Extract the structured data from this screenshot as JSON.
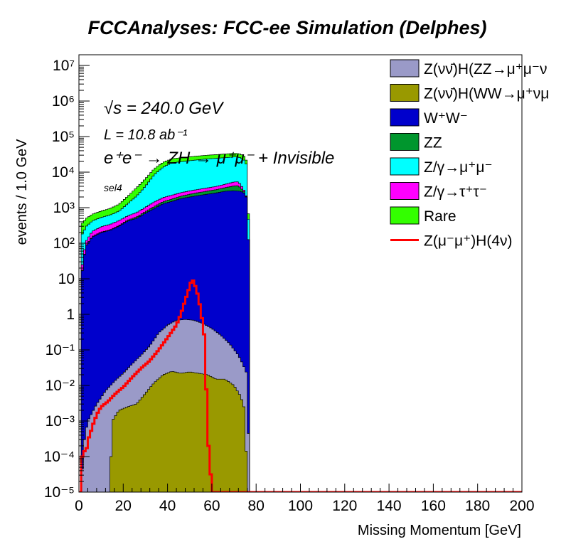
{
  "chart_data": {
    "type": "histogram (stacked, log-y)",
    "title": "FCCAnalyses: FCC-ee Simulation (Delphes)",
    "xlabel": "Missing Momentum [GeV]",
    "ylabel": "events / 1.0 GeV",
    "xlim": [
      0,
      200
    ],
    "ylim": [
      1e-05,
      20000000.0
    ],
    "y_scale": "log",
    "bin_width_gev": 1.0,
    "x_tick_labels": [
      "0",
      "20",
      "40",
      "60",
      "80",
      "100",
      "120",
      "140",
      "160",
      "180",
      "200"
    ],
    "y_tick_labels": [
      "10⁻⁵",
      "10⁻⁴",
      "10⁻³",
      "10⁻²",
      "10⁻¹",
      "1",
      "10",
      "10²",
      "10³",
      "10⁴",
      "10⁵",
      "10⁶",
      "10⁷"
    ],
    "annotations": {
      "energy": "√s = 240.0 GeV",
      "lumi": "L = 10.8 ab⁻¹",
      "process": "e⁺e⁻ → ZH → μ⁺μ⁻ + Invisible",
      "selection": "sel4"
    },
    "legend_position": "top-right",
    "stack_order_bottom_to_top": [
      "ZZmumu_nunu",
      "WW",
      "ZZ",
      "Zmumu",
      "Ztautau",
      "Rare"
    ],
    "series": [
      {
        "key": "ZZmumu_nunu",
        "name": "Z(νν̄)H(ZZ→μ⁺μ⁻ν",
        "color": "#9a9ac8",
        "points": [
          [
            1,
            1e-05
          ],
          [
            2,
            0.0002
          ],
          [
            4,
            0.001
          ],
          [
            8,
            0.003
          ],
          [
            12,
            0.007
          ],
          [
            16,
            0.013
          ],
          [
            20,
            0.022
          ],
          [
            24,
            0.04
          ],
          [
            28,
            0.07
          ],
          [
            32,
            0.13
          ],
          [
            36,
            0.3
          ],
          [
            40,
            0.5
          ],
          [
            44,
            0.68
          ],
          [
            48,
            0.72
          ],
          [
            52,
            0.68
          ],
          [
            56,
            0.55
          ],
          [
            60,
            0.4
          ],
          [
            64,
            0.26
          ],
          [
            68,
            0.15
          ],
          [
            72,
            0.07
          ],
          [
            74,
            0.04
          ],
          [
            76,
            0.02
          ],
          [
            77,
            1e-05
          ]
        ]
      },
      {
        "key": "WW_mumununu",
        "name": "Z(νν̄)H(WW→μ⁺νμ",
        "color": "#999900",
        "points": [
          [
            14,
            1e-05
          ],
          [
            15,
            0.001
          ],
          [
            18,
            0.002
          ],
          [
            22,
            0.0025
          ],
          [
            26,
            0.003
          ],
          [
            30,
            0.006
          ],
          [
            34,
            0.012
          ],
          [
            38,
            0.02
          ],
          [
            42,
            0.025
          ],
          [
            46,
            0.022
          ],
          [
            50,
            0.024
          ],
          [
            54,
            0.022
          ],
          [
            58,
            0.02
          ],
          [
            62,
            0.015
          ],
          [
            66,
            0.015
          ],
          [
            70,
            0.01
          ],
          [
            73,
            0.005
          ],
          [
            75,
            0.002
          ],
          [
            76,
            1e-05
          ]
        ]
      },
      {
        "key": "WW",
        "name": "W⁺W⁻",
        "color": "#0000cc",
        "points": [
          [
            1,
            10
          ],
          [
            3,
            80
          ],
          [
            6,
            150
          ],
          [
            10,
            200
          ],
          [
            14,
            230
          ],
          [
            18,
            300
          ],
          [
            22,
            420
          ],
          [
            26,
            500
          ],
          [
            30,
            700
          ],
          [
            34,
            950
          ],
          [
            38,
            1300
          ],
          [
            42,
            1500
          ],
          [
            46,
            1800
          ],
          [
            50,
            2000
          ],
          [
            54,
            2200
          ],
          [
            58,
            2400
          ],
          [
            62,
            2600
          ],
          [
            66,
            2900
          ],
          [
            70,
            3000
          ],
          [
            73,
            2900
          ],
          [
            75,
            2500
          ],
          [
            76,
            1600
          ],
          [
            77,
            10
          ]
        ]
      },
      {
        "key": "ZZ",
        "name": "ZZ",
        "color": "#00962d",
        "points": [
          [
            1,
            0.5
          ],
          [
            3,
            2
          ],
          [
            6,
            4
          ],
          [
            10,
            6
          ],
          [
            14,
            7
          ],
          [
            18,
            12
          ],
          [
            22,
            25
          ],
          [
            26,
            45
          ],
          [
            30,
            70
          ],
          [
            34,
            120
          ],
          [
            38,
            180
          ],
          [
            42,
            240
          ],
          [
            46,
            300
          ],
          [
            50,
            380
          ],
          [
            54,
            450
          ],
          [
            58,
            520
          ],
          [
            62,
            600
          ],
          [
            66,
            750
          ],
          [
            70,
            1100
          ],
          [
            72,
            1200
          ],
          [
            74,
            400
          ],
          [
            76,
            40
          ],
          [
            77,
            1e-05
          ]
        ]
      },
      {
        "key": "Zmumu",
        "name": "Z/γ→μ⁺μ⁻",
        "color": "#00ffff",
        "points": [
          [
            1,
            150
          ],
          [
            3,
            180
          ],
          [
            6,
            210
          ],
          [
            10,
            240
          ],
          [
            14,
            280
          ],
          [
            18,
            360
          ],
          [
            22,
            700
          ],
          [
            26,
            1400
          ],
          [
            30,
            3000
          ],
          [
            34,
            7000
          ],
          [
            38,
            12000
          ],
          [
            42,
            16000
          ],
          [
            46,
            17000
          ],
          [
            50,
            18000
          ],
          [
            54,
            19000
          ],
          [
            58,
            20000
          ],
          [
            62,
            20500
          ],
          [
            66,
            21000
          ],
          [
            70,
            21500
          ],
          [
            73,
            21000
          ],
          [
            75,
            18000
          ],
          [
            76,
            12000
          ],
          [
            77,
            10
          ]
        ]
      },
      {
        "key": "Ztautau",
        "name": "Z/γ→τ⁺τ⁻",
        "color": "#ff00ff",
        "points": [
          [
            1,
            5
          ],
          [
            3,
            25
          ],
          [
            6,
            60
          ],
          [
            10,
            85
          ],
          [
            14,
            100
          ],
          [
            18,
            120
          ],
          [
            22,
            140
          ],
          [
            26,
            180
          ],
          [
            30,
            250
          ],
          [
            34,
            380
          ],
          [
            38,
            450
          ],
          [
            42,
            500
          ],
          [
            46,
            550
          ],
          [
            50,
            580
          ],
          [
            54,
            620
          ],
          [
            58,
            680
          ],
          [
            62,
            750
          ],
          [
            66,
            900
          ],
          [
            70,
            1200
          ],
          [
            72,
            1200
          ],
          [
            74,
            500
          ],
          [
            76,
            60
          ],
          [
            77,
            1e-05
          ]
        ]
      },
      {
        "key": "Rare",
        "name": "Rare",
        "color": "#33ff00",
        "points": [
          [
            1,
            180
          ],
          [
            3,
            200
          ],
          [
            6,
            230
          ],
          [
            10,
            270
          ],
          [
            14,
            330
          ],
          [
            18,
            450
          ],
          [
            22,
            800
          ],
          [
            26,
            1500
          ],
          [
            30,
            2500
          ],
          [
            34,
            4000
          ],
          [
            38,
            5000
          ],
          [
            42,
            5500
          ],
          [
            46,
            5800
          ],
          [
            50,
            6000
          ],
          [
            54,
            6200
          ],
          [
            58,
            6400
          ],
          [
            62,
            6600
          ],
          [
            66,
            6800
          ],
          [
            70,
            7000
          ],
          [
            73,
            6800
          ],
          [
            75,
            6000
          ],
          [
            76,
            4000
          ],
          [
            77,
            10
          ]
        ]
      },
      {
        "key": "signal",
        "name": "Z(μ⁻μ⁺)H(4ν)",
        "color": "#ff0000",
        "style": "line",
        "points": [
          [
            1,
            1e-05
          ],
          [
            1.5,
            0.0001
          ],
          [
            2,
            0.0002
          ],
          [
            3,
            0.0001
          ],
          [
            4,
            0.0003
          ],
          [
            5,
            0.0004
          ],
          [
            6,
            0.0007
          ],
          [
            7,
            0.001
          ],
          [
            8,
            0.0015
          ],
          [
            10,
            0.0025
          ],
          [
            13,
            0.0035
          ],
          [
            16,
            0.0055
          ],
          [
            20,
            0.009
          ],
          [
            24,
            0.017
          ],
          [
            28,
            0.03
          ],
          [
            32,
            0.05
          ],
          [
            36,
            0.1
          ],
          [
            40,
            0.22
          ],
          [
            44,
            0.5
          ],
          [
            46,
            1
          ],
          [
            48,
            2.5
          ],
          [
            50,
            6
          ],
          [
            51,
            10
          ],
          [
            52,
            8
          ],
          [
            54,
            3
          ],
          [
            56,
            0.5
          ],
          [
            57,
            0.15
          ],
          [
            58,
            0.0004
          ],
          [
            59,
            0.0001
          ],
          [
            60,
            1e-05
          ],
          [
            200,
            1e-05
          ]
        ]
      }
    ]
  },
  "legend": [
    {
      "label": "Z(νν̄)H(ZZ→μ⁺μ⁻ν",
      "color": "#9a9ac8",
      "kind": "box"
    },
    {
      "label": "Z(νν̄)H(WW→μ⁺νμ",
      "color": "#999900",
      "kind": "box"
    },
    {
      "label": "W⁺W⁻",
      "color": "#0000cc",
      "kind": "box"
    },
    {
      "label": "ZZ",
      "color": "#00962d",
      "kind": "box"
    },
    {
      "label": "Z/γ→μ⁺μ⁻",
      "color": "#00ffff",
      "kind": "box"
    },
    {
      "label": "Z/γ→τ⁺τ⁻",
      "color": "#ff00ff",
      "kind": "box"
    },
    {
      "label": "Rare",
      "color": "#33ff00",
      "kind": "box"
    },
    {
      "label": "Z(μ⁻μ⁺)H(4ν)",
      "color": "#ff0000",
      "kind": "line"
    }
  ]
}
